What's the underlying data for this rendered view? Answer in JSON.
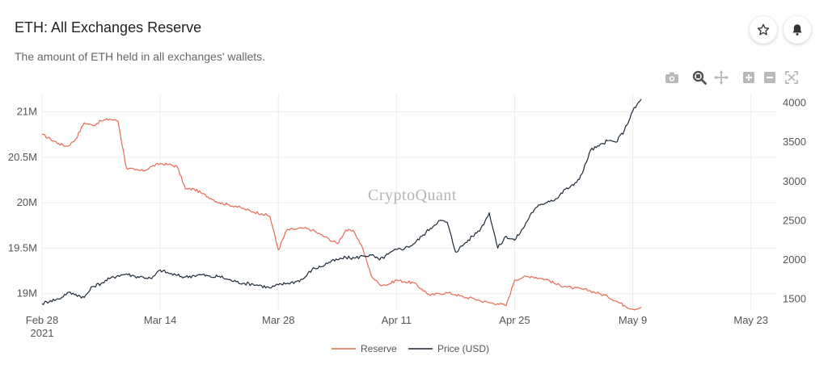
{
  "header": {
    "title": "ETH: All Exchanges Reserve",
    "subtitle": "The amount of ETH held in all exchanges' wallets."
  },
  "actions": {
    "favorite_icon": "star-icon",
    "alert_icon": "bell-icon"
  },
  "modebar": [
    "camera-icon",
    "zoom-icon",
    "pan-icon",
    "zoom-in-icon",
    "zoom-out-icon",
    "autoscale-icon"
  ],
  "watermark": "CryptoQuant",
  "colors": {
    "reserve": "#e8694f",
    "price": "#1f2a3a",
    "grid": "#ececec"
  },
  "chart_data": {
    "type": "line",
    "title": "ETH: All Exchanges Reserve",
    "x_axis": {
      "type": "date",
      "range": [
        "2021-02-28",
        "2021-05-26"
      ],
      "ticks": [
        {
          "date": "2021-02-28",
          "label": "Feb 28",
          "sublabel": "2021"
        },
        {
          "date": "2021-03-14",
          "label": "Mar 14"
        },
        {
          "date": "2021-03-28",
          "label": "Mar 28"
        },
        {
          "date": "2021-04-11",
          "label": "Apr 11"
        },
        {
          "date": "2021-04-25",
          "label": "Apr 25"
        },
        {
          "date": "2021-05-09",
          "label": "May 9"
        },
        {
          "date": "2021-05-23",
          "label": "May 23"
        }
      ]
    },
    "y_left": {
      "range": [
        18820000,
        21200000
      ],
      "ticks": [
        {
          "value": 19000000,
          "label": "19M"
        },
        {
          "value": 19500000,
          "label": "19.5M"
        },
        {
          "value": 20000000,
          "label": "20M"
        },
        {
          "value": 20500000,
          "label": "20.5M"
        },
        {
          "value": 21000000,
          "label": "21M"
        }
      ]
    },
    "y_right": {
      "range": [
        1360,
        4120
      ],
      "ticks": [
        {
          "value": 1500,
          "label": "1500"
        },
        {
          "value": 2000,
          "label": "2000"
        },
        {
          "value": 2500,
          "label": "2500"
        },
        {
          "value": 3000,
          "label": "3000"
        },
        {
          "value": 3500,
          "label": "3500"
        },
        {
          "value": 4000,
          "label": "4000"
        }
      ]
    },
    "grid": true,
    "legend_position": "bottom-center",
    "series": [
      {
        "name": "Reserve",
        "axis": "left",
        "points": [
          [
            "2021-02-28",
            20750000
          ],
          [
            "2021-03-01",
            20700000
          ],
          [
            "2021-03-02",
            20650000
          ],
          [
            "2021-03-03",
            20620000
          ],
          [
            "2021-03-04",
            20700000
          ],
          [
            "2021-03-05",
            20880000
          ],
          [
            "2021-03-06",
            20850000
          ],
          [
            "2021-03-07",
            20900000
          ],
          [
            "2021-03-08",
            20920000
          ],
          [
            "2021-03-09",
            20900000
          ],
          [
            "2021-03-10",
            20380000
          ],
          [
            "2021-03-11",
            20360000
          ],
          [
            "2021-03-12",
            20350000
          ],
          [
            "2021-03-13",
            20400000
          ],
          [
            "2021-03-14",
            20430000
          ],
          [
            "2021-03-15",
            20420000
          ],
          [
            "2021-03-16",
            20400000
          ],
          [
            "2021-03-17",
            20150000
          ],
          [
            "2021-03-18",
            20150000
          ],
          [
            "2021-03-19",
            20100000
          ],
          [
            "2021-03-20",
            20050000
          ],
          [
            "2021-03-21",
            20000000
          ],
          [
            "2021-03-22",
            19980000
          ],
          [
            "2021-03-23",
            19960000
          ],
          [
            "2021-03-24",
            19930000
          ],
          [
            "2021-03-25",
            19900000
          ],
          [
            "2021-03-26",
            19880000
          ],
          [
            "2021-03-27",
            19850000
          ],
          [
            "2021-03-28",
            19480000
          ],
          [
            "2021-03-29",
            19700000
          ],
          [
            "2021-03-30",
            19710000
          ],
          [
            "2021-03-31",
            19720000
          ],
          [
            "2021-04-01",
            19700000
          ],
          [
            "2021-04-02",
            19650000
          ],
          [
            "2021-04-03",
            19600000
          ],
          [
            "2021-04-04",
            19550000
          ],
          [
            "2021-04-05",
            19700000
          ],
          [
            "2021-04-06",
            19680000
          ],
          [
            "2021-04-07",
            19500000
          ],
          [
            "2021-04-08",
            19200000
          ],
          [
            "2021-04-09",
            19100000
          ],
          [
            "2021-04-10",
            19100000
          ],
          [
            "2021-04-11",
            19150000
          ],
          [
            "2021-04-12",
            19130000
          ],
          [
            "2021-04-13",
            19120000
          ],
          [
            "2021-04-14",
            19050000
          ],
          [
            "2021-04-15",
            18980000
          ],
          [
            "2021-04-16",
            19000000
          ],
          [
            "2021-04-17",
            19010000
          ],
          [
            "2021-04-18",
            18990000
          ],
          [
            "2021-04-19",
            18960000
          ],
          [
            "2021-04-20",
            18950000
          ],
          [
            "2021-04-21",
            18920000
          ],
          [
            "2021-04-22",
            18900000
          ],
          [
            "2021-04-23",
            18890000
          ],
          [
            "2021-04-24",
            18870000
          ],
          [
            "2021-04-25",
            19150000
          ],
          [
            "2021-04-26",
            19180000
          ],
          [
            "2021-04-27",
            19190000
          ],
          [
            "2021-04-28",
            19170000
          ],
          [
            "2021-04-29",
            19150000
          ],
          [
            "2021-04-30",
            19100000
          ],
          [
            "2021-05-01",
            19080000
          ],
          [
            "2021-05-02",
            19060000
          ],
          [
            "2021-05-03",
            19050000
          ],
          [
            "2021-05-04",
            19030000
          ],
          [
            "2021-05-05",
            19000000
          ],
          [
            "2021-05-06",
            18970000
          ],
          [
            "2021-05-07",
            18920000
          ],
          [
            "2021-05-08",
            18870000
          ],
          [
            "2021-05-09",
            18830000
          ],
          [
            "2021-05-10",
            18850000
          ]
        ]
      },
      {
        "name": "Price (USD)",
        "axis": "right",
        "points": [
          [
            "2021-02-28",
            1440
          ],
          [
            "2021-03-01",
            1480
          ],
          [
            "2021-03-02",
            1500
          ],
          [
            "2021-03-03",
            1580
          ],
          [
            "2021-03-04",
            1560
          ],
          [
            "2021-03-05",
            1520
          ],
          [
            "2021-03-06",
            1660
          ],
          [
            "2021-03-07",
            1700
          ],
          [
            "2021-03-08",
            1760
          ],
          [
            "2021-03-09",
            1800
          ],
          [
            "2021-03-10",
            1820
          ],
          [
            "2021-03-11",
            1790
          ],
          [
            "2021-03-12",
            1780
          ],
          [
            "2021-03-13",
            1760
          ],
          [
            "2021-03-14",
            1870
          ],
          [
            "2021-03-15",
            1830
          ],
          [
            "2021-03-16",
            1800
          ],
          [
            "2021-03-17",
            1780
          ],
          [
            "2021-03-18",
            1800
          ],
          [
            "2021-03-19",
            1810
          ],
          [
            "2021-03-20",
            1780
          ],
          [
            "2021-03-21",
            1790
          ],
          [
            "2021-03-22",
            1750
          ],
          [
            "2021-03-23",
            1720
          ],
          [
            "2021-03-24",
            1700
          ],
          [
            "2021-03-25",
            1690
          ],
          [
            "2021-03-26",
            1670
          ],
          [
            "2021-03-27",
            1640
          ],
          [
            "2021-03-28",
            1680
          ],
          [
            "2021-03-29",
            1700
          ],
          [
            "2021-03-30",
            1720
          ],
          [
            "2021-03-31",
            1760
          ],
          [
            "2021-04-01",
            1880
          ],
          [
            "2021-04-02",
            1910
          ],
          [
            "2021-04-03",
            1970
          ],
          [
            "2021-04-04",
            2000
          ],
          [
            "2021-04-05",
            2030
          ],
          [
            "2021-04-06",
            2020
          ],
          [
            "2021-04-07",
            2050
          ],
          [
            "2021-04-08",
            2060
          ],
          [
            "2021-04-09",
            2000
          ],
          [
            "2021-04-10",
            2070
          ],
          [
            "2021-04-11",
            2130
          ],
          [
            "2021-04-12",
            2150
          ],
          [
            "2021-04-13",
            2200
          ],
          [
            "2021-04-14",
            2300
          ],
          [
            "2021-04-15",
            2400
          ],
          [
            "2021-04-16",
            2500
          ],
          [
            "2021-04-17",
            2480
          ],
          [
            "2021-04-18",
            2100
          ],
          [
            "2021-04-19",
            2200
          ],
          [
            "2021-04-20",
            2300
          ],
          [
            "2021-04-21",
            2400
          ],
          [
            "2021-04-22",
            2600
          ],
          [
            "2021-04-23",
            2150
          ],
          [
            "2021-04-24",
            2300
          ],
          [
            "2021-04-25",
            2250
          ],
          [
            "2021-04-26",
            2400
          ],
          [
            "2021-04-27",
            2600
          ],
          [
            "2021-04-28",
            2700
          ],
          [
            "2021-04-29",
            2750
          ],
          [
            "2021-04-30",
            2780
          ],
          [
            "2021-05-01",
            2900
          ],
          [
            "2021-05-02",
            2950
          ],
          [
            "2021-05-03",
            3100
          ],
          [
            "2021-05-04",
            3400
          ],
          [
            "2021-05-05",
            3450
          ],
          [
            "2021-05-06",
            3520
          ],
          [
            "2021-05-07",
            3500
          ],
          [
            "2021-05-08",
            3650
          ],
          [
            "2021-05-09",
            3900
          ],
          [
            "2021-05-10",
            4050
          ]
        ]
      }
    ],
    "legend": [
      {
        "name": "Reserve"
      },
      {
        "name": "Price (USD)"
      }
    ]
  }
}
